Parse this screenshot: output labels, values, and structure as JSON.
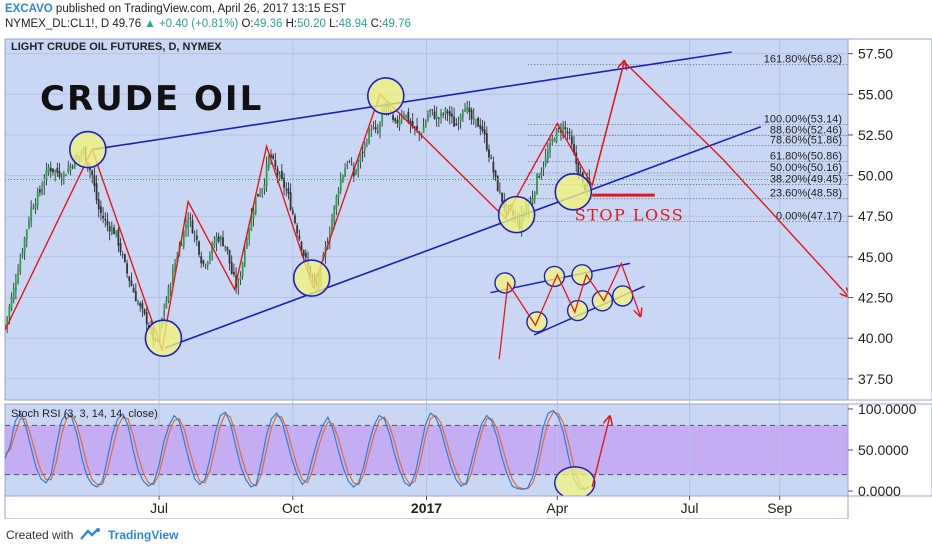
{
  "header": {
    "author": "EXCAVO",
    "published_text": "published on TradingView.com, April 26, 2017 13:15 EST",
    "symbol_line": "NYMEX_DL:CL1!, D",
    "last_price": "49.76",
    "change": "+0.40 (+0.81%)",
    "o_label": "O:",
    "o_value": "49.36",
    "h_label": "H:",
    "h_value": "50.20",
    "l_label": "L:",
    "l_value": "48.94",
    "c_label": "C:",
    "c_value": "49.76"
  },
  "footer": {
    "created_with": "Created with",
    "brand": "TradingView"
  },
  "colors": {
    "pane_bg": "#c9d7f5",
    "grid": "#b3c2e6",
    "bull": "#2f9e4a",
    "bear": "#333333",
    "trend_blue": "#1f1fbf",
    "zigzag_red": "#e01a1a",
    "circle_fill": "#f2f57a",
    "fib_line": "#555555",
    "rsi_band": "#c3a9f2",
    "stoch_k": "#2e7fd9",
    "stoch_d": "#e46a3a"
  },
  "chart_data": [
    {
      "type": "candlestick",
      "title": "LIGHT CRUDE OIL FUTURES, D, NYMEX",
      "annotation_title": "CRUDE OIL",
      "stop_loss_label": "STOP LOSS",
      "y_ticks": [
        "57.50",
        "55.00",
        "52.50",
        "50.00",
        "47.50",
        "45.00",
        "42.50",
        "40.00",
        "37.50"
      ],
      "y_tick_values": [
        57.5,
        55,
        52.5,
        50,
        47.5,
        45,
        42.5,
        40,
        37.5
      ],
      "ylim": [
        36.2,
        58.4
      ],
      "x_ticks": [
        {
          "label": "Jul",
          "day": 106
        },
        {
          "label": "Oct",
          "day": 198
        },
        {
          "label": "2017",
          "day": 290
        },
        {
          "label": "Apr",
          "day": 380
        },
        {
          "label": "Jul",
          "day": 471
        },
        {
          "label": "Sep",
          "day": 533
        }
      ],
      "x_range_days": [
        0,
        580
      ],
      "current_price": 49.76,
      "fib_levels": [
        {
          "label": "161.80%(56.82)",
          "value": 56.82
        },
        {
          "label": "100.00%(53.14)",
          "value": 53.14
        },
        {
          "label": "88.60%(52.46)",
          "value": 52.46
        },
        {
          "label": "78.60%(51.86)",
          "value": 51.86
        },
        {
          "label": "61.80%(50.86)",
          "value": 50.86
        },
        {
          "label": "50.00%(50.16)",
          "value": 50.16
        },
        {
          "label": "38.20%(49.45)",
          "value": 49.45
        },
        {
          "label": "23.60%(48.58)",
          "value": 48.58
        },
        {
          "label": "0.00%(47.17)",
          "value": 47.17
        }
      ],
      "fib_day_range": [
        360,
        630
      ],
      "price_path": [
        [
          0,
          40.8
        ],
        [
          6,
          43
        ],
        [
          12,
          45.5
        ],
        [
          18,
          48
        ],
        [
          24,
          49
        ],
        [
          30,
          50.5
        ],
        [
          40,
          50
        ],
        [
          48,
          51
        ],
        [
          54,
          51.5
        ],
        [
          60,
          50
        ],
        [
          64,
          48
        ],
        [
          70,
          47
        ],
        [
          76,
          46.5
        ],
        [
          84,
          44
        ],
        [
          92,
          42
        ],
        [
          98,
          41
        ],
        [
          104,
          39.5
        ],
        [
          110,
          42
        ],
        [
          118,
          45
        ],
        [
          126,
          47.5
        ],
        [
          132,
          46
        ],
        [
          136,
          44.5
        ],
        [
          140,
          45
        ],
        [
          146,
          46.3
        ],
        [
          152,
          45.7
        ],
        [
          156,
          44
        ],
        [
          160,
          43
        ],
        [
          166,
          46
        ],
        [
          172,
          48.5
        ],
        [
          178,
          49.5
        ],
        [
          182,
          51.3
        ],
        [
          188,
          50
        ],
        [
          194,
          49
        ],
        [
          200,
          47
        ],
        [
          206,
          45
        ],
        [
          210,
          44
        ],
        [
          214,
          43
        ],
        [
          222,
          46
        ],
        [
          230,
          49.5
        ],
        [
          236,
          51
        ],
        [
          240,
          50
        ],
        [
          246,
          51.5
        ],
        [
          252,
          53
        ],
        [
          256,
          52.5
        ],
        [
          262,
          54.5
        ],
        [
          268,
          53
        ],
        [
          274,
          54
        ],
        [
          280,
          53
        ],
        [
          286,
          52.5
        ],
        [
          292,
          54
        ],
        [
          298,
          53.5
        ],
        [
          304,
          54
        ],
        [
          310,
          53
        ],
        [
          316,
          54.5
        ],
        [
          320,
          53.5
        ],
        [
          328,
          53
        ],
        [
          334,
          51
        ],
        [
          338,
          49.5
        ],
        [
          344,
          48
        ],
        [
          350,
          47.5
        ],
        [
          354,
          47
        ],
        [
          358,
          48
        ],
        [
          362,
          48.4
        ],
        [
          366,
          49.8
        ],
        [
          372,
          51
        ],
        [
          378,
          52.5
        ],
        [
          384,
          53
        ],
        [
          388,
          52.5
        ],
        [
          392,
          51
        ],
        [
          396,
          50
        ],
        [
          398,
          49.2
        ],
        [
          402,
          49.76
        ]
      ],
      "trendlines": [
        {
          "name": "upper",
          "points": [
            [
              60,
              51.6
            ],
            [
              500,
              57.6
            ]
          ]
        },
        {
          "name": "lower",
          "points": [
            [
              110,
              39.4
            ],
            [
              520,
              53.0
            ]
          ]
        }
      ],
      "zigzag": [
        [
          0,
          40.5
        ],
        [
          60,
          51.6
        ],
        [
          108,
          39.3
        ],
        [
          126,
          48.4
        ],
        [
          158,
          43
        ],
        [
          180,
          51.8
        ],
        [
          212,
          43.1
        ],
        [
          258,
          55
        ],
        [
          344,
          47.4
        ],
        [
          380,
          53.2
        ],
        [
          404,
          49.4
        ],
        [
          426,
          57
        ]
      ],
      "forecast_line": [
        [
          426,
          57
        ],
        [
          494,
          51
        ],
        [
          580,
          42.6
        ]
      ],
      "circles": [
        {
          "day": 57,
          "price": 51.6
        },
        {
          "day": 109,
          "price": 40
        },
        {
          "day": 211,
          "price": 43.7
        },
        {
          "day": 262,
          "price": 54.9
        },
        {
          "day": 352,
          "price": 47.6
        },
        {
          "day": 391,
          "price": 49
        }
      ],
      "stop_loss": {
        "price": 48.8,
        "day_range": [
          404,
          447
        ]
      },
      "mini_pattern": {
        "circles": [
          [
            344,
            43.4
          ],
          [
            366,
            41
          ],
          [
            378,
            43.8
          ],
          [
            394,
            41.7
          ],
          [
            397,
            43.9
          ],
          [
            411,
            42.3
          ],
          [
            425,
            42.6
          ]
        ],
        "upper_line": [
          [
            334,
            42.8
          ],
          [
            430,
            44.6
          ]
        ],
        "lower_line": [
          [
            364,
            40.2
          ],
          [
            440,
            43.2
          ]
        ],
        "zigzag": [
          [
            340,
            38.7
          ],
          [
            346,
            43.4
          ],
          [
            365,
            40.8
          ],
          [
            380,
            43.9
          ],
          [
            392,
            41.6
          ],
          [
            400,
            43.9
          ],
          [
            412,
            42.3
          ],
          [
            424,
            44.6
          ],
          [
            437,
            41.4
          ]
        ]
      }
    },
    {
      "type": "line",
      "title": "Stoch RSI (3, 3, 14, 14, close)",
      "y_ticks": [
        "100.0000",
        "50.0000",
        "0.0000"
      ],
      "y_tick_values": [
        100,
        50,
        0
      ],
      "ylim": [
        -6,
        106
      ],
      "band": [
        20,
        80
      ],
      "series": [
        {
          "name": "K",
          "color": "#2e7fd9"
        },
        {
          "name": "D",
          "color": "#e46a3a"
        }
      ],
      "k_values": [
        40,
        55,
        85,
        95,
        80,
        55,
        30,
        15,
        10,
        20,
        55,
        85,
        95,
        90,
        70,
        40,
        18,
        8,
        5,
        12,
        40,
        70,
        88,
        94,
        80,
        50,
        25,
        12,
        6,
        10,
        30,
        60,
        80,
        92,
        85,
        60,
        35,
        15,
        8,
        14,
        40,
        70,
        92,
        96,
        82,
        55,
        30,
        14,
        5,
        8,
        35,
        68,
        88,
        95,
        85,
        62,
        38,
        20,
        8,
        15,
        40,
        62,
        80,
        90,
        75,
        50,
        28,
        12,
        5,
        10,
        30,
        58,
        80,
        92,
        88,
        70,
        45,
        25,
        10,
        6,
        20,
        50,
        80,
        95,
        90,
        75,
        52,
        30,
        14,
        6,
        10,
        35,
        60,
        82,
        92,
        85,
        65,
        40,
        20,
        6,
        3,
        2,
        4,
        18,
        45,
        78,
        95,
        98,
        90,
        70,
        40,
        15,
        4,
        2,
        6
      ],
      "d_values": [
        45,
        50,
        70,
        88,
        88,
        68,
        45,
        25,
        14,
        14,
        35,
        68,
        88,
        93,
        82,
        58,
        32,
        14,
        8,
        8,
        25,
        52,
        78,
        90,
        88,
        68,
        42,
        22,
        10,
        8,
        20,
        45,
        70,
        86,
        88,
        75,
        50,
        28,
        12,
        10,
        25,
        52,
        80,
        94,
        90,
        70,
        45,
        24,
        10,
        6,
        20,
        50,
        78,
        92,
        90,
        75,
        52,
        30,
        14,
        10,
        25,
        50,
        70,
        84,
        82,
        65,
        42,
        22,
        10,
        8,
        20,
        45,
        68,
        86,
        90,
        80,
        60,
        36,
        18,
        8,
        12,
        35,
        65,
        88,
        92,
        84,
        64,
        42,
        24,
        10,
        8,
        22,
        48,
        72,
        88,
        88,
        76,
        55,
        32,
        14,
        5,
        3,
        3,
        10,
        30,
        60,
        85,
        96,
        94,
        82,
        58,
        30,
        10,
        3,
        4
      ]
    }
  ]
}
